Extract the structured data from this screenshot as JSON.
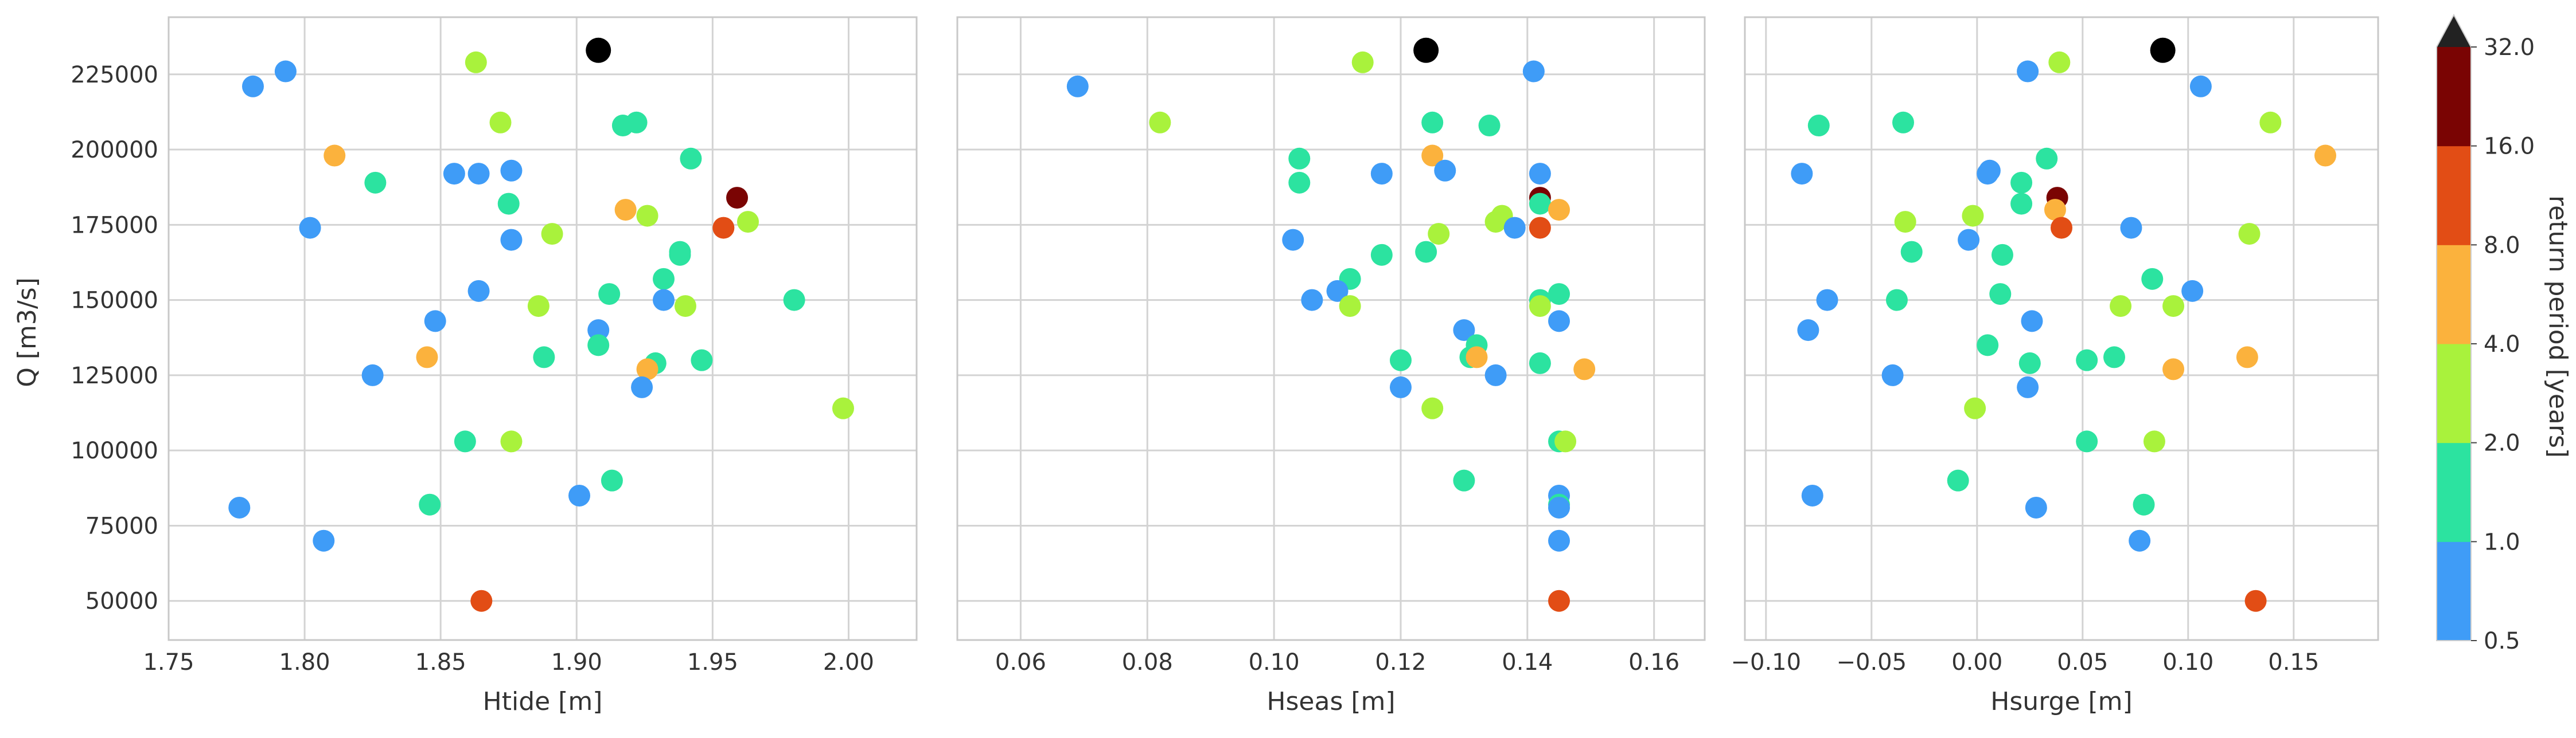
{
  "chart_data": {
    "type": "scatter",
    "ylabel": "Q [m3/s]",
    "yticks": [
      50000,
      75000,
      100000,
      125000,
      150000,
      175000,
      200000,
      225000
    ],
    "ylim": [
      37000,
      244000
    ],
    "grid": true,
    "colorbar": {
      "label": "return period [years]",
      "ticks": [
        "0.5",
        "1.0",
        "2.0",
        "4.0",
        "8.0",
        "16.0",
        "32.0"
      ],
      "colors": [
        "#3f9cf7",
        "#2ce3a0",
        "#a9f23c",
        "#fbb23d",
        "#e24d15",
        "#7a0403"
      ],
      "extend": "max",
      "extend_color": "#222222"
    },
    "points": [
      {
        "Q": 233000,
        "Htide": 1.908,
        "Hseas": 0.124,
        "Hsurge": 0.088,
        "color": "#000000"
      },
      {
        "Q": 229000,
        "Htide": 1.863,
        "Hseas": 0.114,
        "Hsurge": 0.039,
        "color": "#a9f23c"
      },
      {
        "Q": 226000,
        "Htide": 1.793,
        "Hseas": 0.141,
        "Hsurge": 0.024,
        "color": "#3f9cf7"
      },
      {
        "Q": 221000,
        "Htide": 1.781,
        "Hseas": 0.069,
        "Hsurge": 0.106,
        "color": "#3f9cf7"
      },
      {
        "Q": 209000,
        "Htide": 1.872,
        "Hseas": 0.082,
        "Hsurge": 0.139,
        "color": "#a9f23c"
      },
      {
        "Q": 209000,
        "Htide": 1.922,
        "Hseas": 0.125,
        "Hsurge": -0.035,
        "color": "#2ce3a0"
      },
      {
        "Q": 208000,
        "Htide": 1.917,
        "Hseas": 0.134,
        "Hsurge": -0.075,
        "color": "#2ce3a0"
      },
      {
        "Q": 198000,
        "Htide": 1.811,
        "Hseas": 0.125,
        "Hsurge": 0.165,
        "color": "#fbb23d"
      },
      {
        "Q": 197000,
        "Htide": 1.942,
        "Hseas": 0.104,
        "Hsurge": 0.033,
        "color": "#2ce3a0"
      },
      {
        "Q": 193000,
        "Htide": 1.876,
        "Hseas": 0.127,
        "Hsurge": 0.006,
        "color": "#3f9cf7"
      },
      {
        "Q": 192000,
        "Htide": 1.855,
        "Hseas": 0.142,
        "Hsurge": -0.083,
        "color": "#3f9cf7"
      },
      {
        "Q": 192000,
        "Htide": 1.864,
        "Hseas": 0.117,
        "Hsurge": 0.005,
        "color": "#3f9cf7"
      },
      {
        "Q": 189000,
        "Htide": 1.826,
        "Hseas": 0.104,
        "Hsurge": 0.021,
        "color": "#2ce3a0"
      },
      {
        "Q": 184000,
        "Htide": 1.959,
        "Hseas": 0.142,
        "Hsurge": 0.038,
        "color": "#7a0403"
      },
      {
        "Q": 182000,
        "Htide": 1.875,
        "Hseas": 0.142,
        "Hsurge": 0.021,
        "color": "#2ce3a0"
      },
      {
        "Q": 180000,
        "Htide": 1.918,
        "Hseas": 0.145,
        "Hsurge": 0.037,
        "color": "#fbb23d"
      },
      {
        "Q": 178000,
        "Htide": 1.926,
        "Hseas": 0.136,
        "Hsurge": -0.002,
        "color": "#a9f23c"
      },
      {
        "Q": 176000,
        "Htide": 1.963,
        "Hseas": 0.135,
        "Hsurge": -0.034,
        "color": "#a9f23c"
      },
      {
        "Q": 174000,
        "Htide": 1.954,
        "Hseas": 0.142,
        "Hsurge": 0.04,
        "color": "#e24d15"
      },
      {
        "Q": 174000,
        "Htide": 1.802,
        "Hseas": 0.138,
        "Hsurge": 0.073,
        "color": "#3f9cf7"
      },
      {
        "Q": 172000,
        "Htide": 1.891,
        "Hseas": 0.126,
        "Hsurge": 0.129,
        "color": "#a9f23c"
      },
      {
        "Q": 170000,
        "Htide": 1.876,
        "Hseas": 0.103,
        "Hsurge": -0.004,
        "color": "#3f9cf7"
      },
      {
        "Q": 166000,
        "Htide": 1.938,
        "Hseas": 0.124,
        "Hsurge": -0.031,
        "color": "#2ce3a0"
      },
      {
        "Q": 165000,
        "Htide": 1.938,
        "Hseas": 0.117,
        "Hsurge": 0.012,
        "color": "#2ce3a0"
      },
      {
        "Q": 157000,
        "Htide": 1.932,
        "Hseas": 0.112,
        "Hsurge": 0.083,
        "color": "#2ce3a0"
      },
      {
        "Q": 153000,
        "Htide": 1.864,
        "Hseas": 0.11,
        "Hsurge": 0.102,
        "color": "#3f9cf7"
      },
      {
        "Q": 152000,
        "Htide": 1.912,
        "Hseas": 0.145,
        "Hsurge": 0.011,
        "color": "#2ce3a0"
      },
      {
        "Q": 150000,
        "Htide": 1.932,
        "Hseas": 0.106,
        "Hsurge": -0.071,
        "color": "#3f9cf7"
      },
      {
        "Q": 150000,
        "Htide": 1.98,
        "Hseas": 0.142,
        "Hsurge": -0.038,
        "color": "#2ce3a0"
      },
      {
        "Q": 148000,
        "Htide": 1.94,
        "Hseas": 0.112,
        "Hsurge": 0.093,
        "color": "#a9f23c"
      },
      {
        "Q": 148000,
        "Htide": 1.886,
        "Hseas": 0.142,
        "Hsurge": 0.068,
        "color": "#a9f23c"
      },
      {
        "Q": 143000,
        "Htide": 1.848,
        "Hseas": 0.145,
        "Hsurge": 0.026,
        "color": "#3f9cf7"
      },
      {
        "Q": 140000,
        "Htide": 1.908,
        "Hseas": 0.13,
        "Hsurge": -0.08,
        "color": "#3f9cf7"
      },
      {
        "Q": 135000,
        "Htide": 1.908,
        "Hseas": 0.132,
        "Hsurge": 0.005,
        "color": "#2ce3a0"
      },
      {
        "Q": 131000,
        "Htide": 1.888,
        "Hseas": 0.131,
        "Hsurge": 0.065,
        "color": "#2ce3a0"
      },
      {
        "Q": 131000,
        "Htide": 1.845,
        "Hseas": 0.132,
        "Hsurge": 0.128,
        "color": "#fbb23d"
      },
      {
        "Q": 130000,
        "Htide": 1.946,
        "Hseas": 0.12,
        "Hsurge": 0.052,
        "color": "#2ce3a0"
      },
      {
        "Q": 129000,
        "Htide": 1.929,
        "Hseas": 0.142,
        "Hsurge": 0.025,
        "color": "#2ce3a0"
      },
      {
        "Q": 127000,
        "Htide": 1.926,
        "Hseas": 0.149,
        "Hsurge": 0.093,
        "color": "#fbb23d"
      },
      {
        "Q": 125000,
        "Htide": 1.825,
        "Hseas": 0.135,
        "Hsurge": -0.04,
        "color": "#3f9cf7"
      },
      {
        "Q": 121000,
        "Htide": 1.924,
        "Hseas": 0.12,
        "Hsurge": 0.024,
        "color": "#3f9cf7"
      },
      {
        "Q": 114000,
        "Htide": 1.998,
        "Hseas": 0.125,
        "Hsurge": -0.001,
        "color": "#a9f23c"
      },
      {
        "Q": 103000,
        "Htide": 1.859,
        "Hseas": 0.145,
        "Hsurge": 0.052,
        "color": "#2ce3a0"
      },
      {
        "Q": 103000,
        "Htide": 1.876,
        "Hseas": 0.146,
        "Hsurge": 0.084,
        "color": "#a9f23c"
      },
      {
        "Q": 90000,
        "Htide": 1.913,
        "Hseas": 0.13,
        "Hsurge": -0.009,
        "color": "#2ce3a0"
      },
      {
        "Q": 85000,
        "Htide": 1.901,
        "Hseas": 0.145,
        "Hsurge": -0.078,
        "color": "#3f9cf7"
      },
      {
        "Q": 82000,
        "Htide": 1.846,
        "Hseas": 0.145,
        "Hsurge": 0.079,
        "color": "#2ce3a0"
      },
      {
        "Q": 81000,
        "Htide": 1.776,
        "Hseas": 0.145,
        "Hsurge": 0.028,
        "color": "#3f9cf7"
      },
      {
        "Q": 70000,
        "Htide": 1.807,
        "Hseas": 0.145,
        "Hsurge": 0.077,
        "color": "#3f9cf7"
      },
      {
        "Q": 50000,
        "Htide": 1.865,
        "Hseas": 0.145,
        "Hsurge": 0.132,
        "color": "#e24d15"
      }
    ],
    "panels": [
      {
        "key": "Htide",
        "xlabel": "Htide [m]",
        "xlim": [
          1.75,
          2.025
        ],
        "xticks": [
          1.75,
          1.8,
          1.85,
          1.9,
          1.95,
          2.0
        ],
        "xtick_labels": [
          "1.75",
          "1.80",
          "1.85",
          "1.90",
          "1.95",
          "2.00"
        ]
      },
      {
        "key": "Hseas",
        "xlabel": "Hseas [m]",
        "xlim": [
          0.05,
          0.168
        ],
        "xticks": [
          0.06,
          0.08,
          0.1,
          0.12,
          0.14,
          0.16
        ],
        "xtick_labels": [
          "0.06",
          "0.08",
          "0.10",
          "0.12",
          "0.14",
          "0.16"
        ]
      },
      {
        "key": "Hsurge",
        "xlabel": "Hsurge [m]",
        "xlim": [
          -0.11,
          0.19
        ],
        "xticks": [
          -0.1,
          -0.05,
          0.0,
          0.05,
          0.1,
          0.15
        ],
        "xtick_labels": [
          "−0.10",
          "−0.05",
          "0.00",
          "0.05",
          "0.10",
          "0.15"
        ]
      }
    ]
  }
}
